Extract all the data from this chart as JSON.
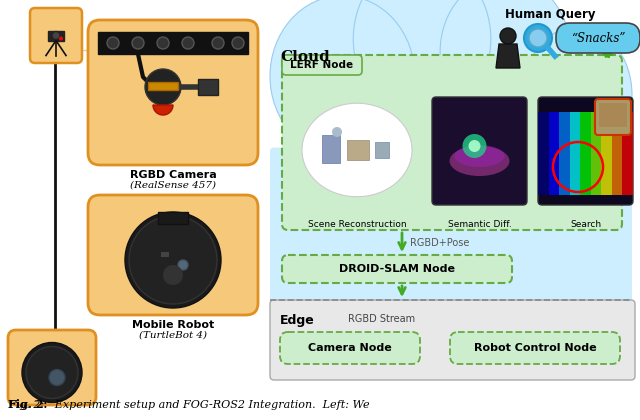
{
  "bg_color": "#ffffff",
  "cloud_fill": "#cceeff",
  "cloud_edge": "#99ccee",
  "lerf_fill": "#cceecc",
  "lerf_edge": "#66aa44",
  "droid_fill": "#cceecc",
  "droid_edge": "#66aa44",
  "edge_fill": "#e8e8e8",
  "edge_edge": "#aaaaaa",
  "node_fill": "#cceecc",
  "node_edge": "#66aa44",
  "orange_fill": "#f5c87a",
  "orange_edge": "#e09020",
  "snacks_fill": "#66ccee",
  "arrow_green": "#44aa22",
  "labels": {
    "cloud": "Cloud",
    "lerf_node": "LERF Node",
    "scene_recon": "Scene Reconstruction",
    "semantic_diff": "Semantic Diff.",
    "search": "Search",
    "rgbd_pose": "RGBD+Pose",
    "droid_slam": "DROID-SLAM Node",
    "edge": "Edge",
    "rgbd_stream": "RGBD Stream",
    "camera_node": "Camera Node",
    "robot_control": "Robot Control Node",
    "human_query": "Human Query",
    "snacks": "“Snacks”",
    "rgbd_camera": "RGBD Camera",
    "realsense": "(RealSense 457)",
    "mobile_robot": "Mobile Robot",
    "turtlebot": "(TurtleBot 4)",
    "fig_caption": "Fig. 2:   Experiment setup and FOG-ROS2 Integration.  Left: We"
  }
}
